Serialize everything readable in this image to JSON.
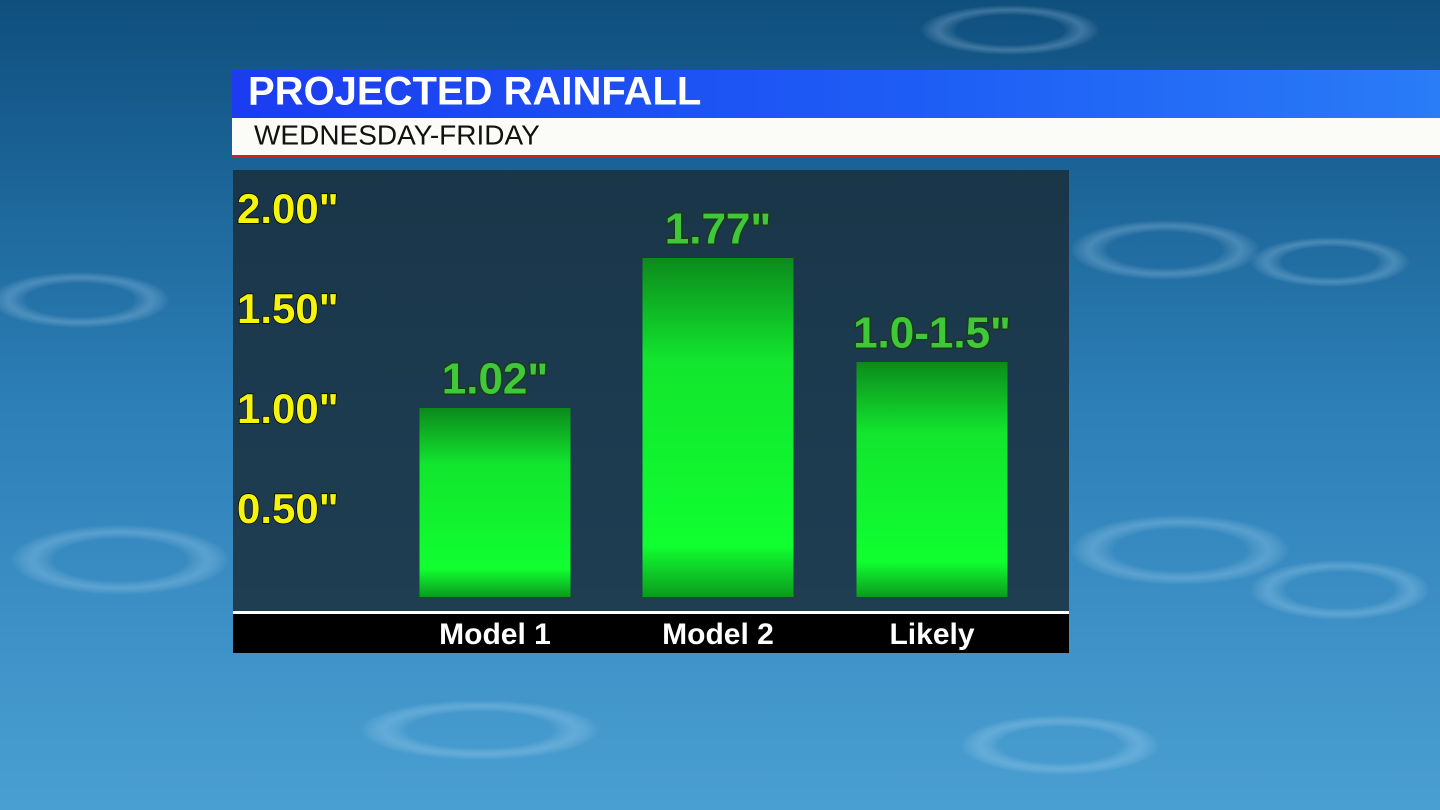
{
  "chart_data": {
    "type": "bar",
    "title": "PROJECTED RAINFALL",
    "subtitle": "WEDNESDAY-FRIDAY",
    "categories": [
      "Model 1",
      "Model 2",
      "Likely"
    ],
    "values": [
      1.02,
      1.77,
      1.25
    ],
    "value_labels": [
      "1.02\"",
      "1.77\"",
      "1.0-1.5\""
    ],
    "color": "#10ff30",
    "ylim": [
      0,
      2.2
    ],
    "yticks": [
      {
        "value": 0.5,
        "label": "0.50\""
      },
      {
        "value": 1,
        "label": "1.00\""
      },
      {
        "value": 1.5,
        "label": "1.50\""
      },
      {
        "value": 2,
        "label": "2.00\""
      }
    ],
    "grid": false
  }
}
